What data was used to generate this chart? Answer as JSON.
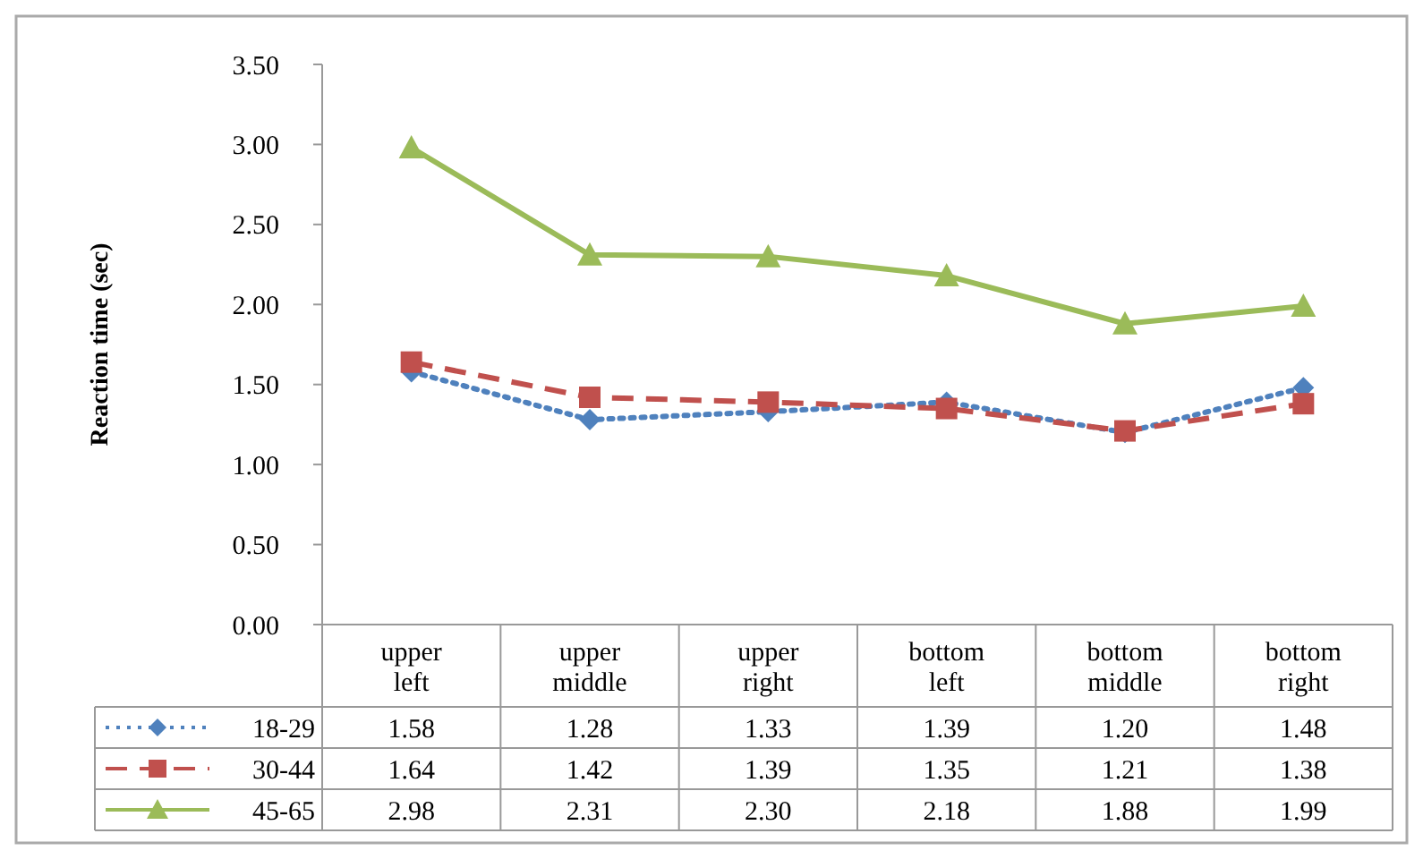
{
  "chart_data": {
    "type": "line",
    "ylabel": "Reaction time (sec)",
    "categories": [
      "upper left",
      "upper middle",
      "upper right",
      "bottom left",
      "bottom middle",
      "bottom right"
    ],
    "ylim": [
      0,
      3.5
    ],
    "legend": "bottom left",
    "yticks": [
      {
        "value": 0,
        "label": "0.00"
      },
      {
        "value": 0.5,
        "label": "0.50"
      },
      {
        "value": 1,
        "label": "1.00"
      },
      {
        "value": 1.5,
        "label": "1.50"
      },
      {
        "value": 2,
        "label": "2.00"
      },
      {
        "value": 2.5,
        "label": "2.50"
      },
      {
        "value": 3,
        "label": "3.00"
      },
      {
        "value": 3.5,
        "label": "3.50"
      }
    ],
    "series": [
      {
        "name": "18-29",
        "color": "#4f81bd",
        "marker": "diamond",
        "line_style": "dotted",
        "values": [
          1.58,
          1.28,
          1.33,
          1.39,
          1.2,
          1.48
        ],
        "value_labels": [
          "1.58",
          "1.28",
          "1.33",
          "1.39",
          "1.20",
          "1.48"
        ]
      },
      {
        "name": "30-44",
        "color": "#c0504d",
        "marker": "square",
        "line_style": "dashed",
        "values": [
          1.64,
          1.42,
          1.39,
          1.35,
          1.21,
          1.38
        ],
        "value_labels": [
          "1.64",
          "1.42",
          "1.39",
          "1.35",
          "1.21",
          "1.38"
        ]
      },
      {
        "name": "45-65",
        "color": "#9bbb59",
        "marker": "triangle",
        "line_style": "solid",
        "values": [
          2.98,
          2.31,
          2.3,
          2.18,
          1.88,
          1.99
        ],
        "value_labels": [
          "2.98",
          "2.31",
          "2.30",
          "2.18",
          "1.88",
          "1.99"
        ]
      }
    ]
  }
}
